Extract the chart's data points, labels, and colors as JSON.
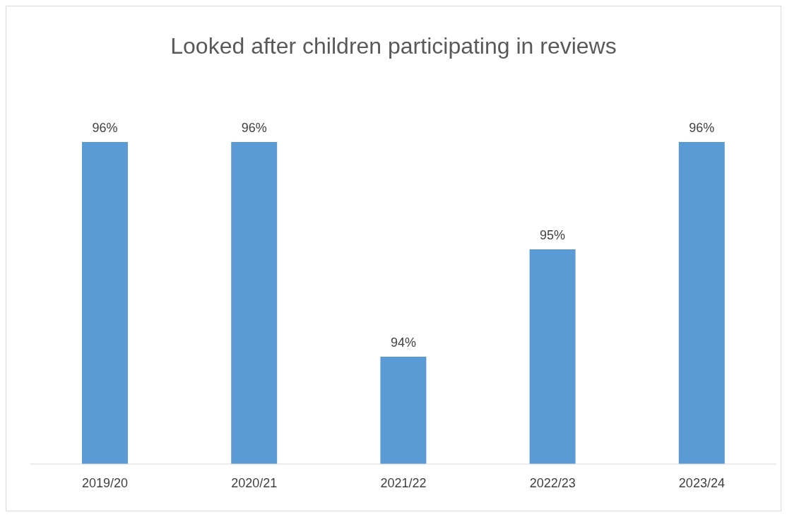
{
  "chart_data": {
    "type": "bar",
    "title": "Looked after children participating in reviews",
    "categories": [
      "2019/20",
      "2020/21",
      "2021/22",
      "2022/23",
      "2023/24"
    ],
    "values": [
      96,
      96,
      94,
      95,
      96
    ],
    "color": "#5b9bd5",
    "value_labels": [
      "96%",
      "96%",
      "94%",
      "95%",
      "96%"
    ],
    "ylim": [
      93,
      96
    ],
    "tick_labels": "x",
    "grid": false,
    "legend": false
  }
}
